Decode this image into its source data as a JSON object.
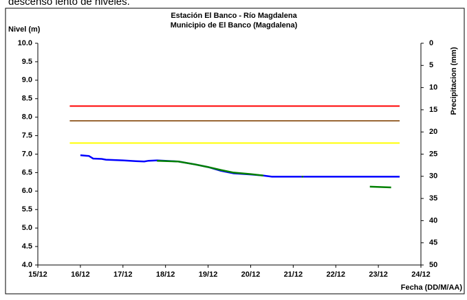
{
  "caption": "descenso lento de niveles.",
  "chart_data": {
    "type": "line",
    "title": "Estación El Banco - Río Magdalena",
    "subtitle": "Municipio de El Banco (Magdalena)",
    "ylabel": "Nivel (m)",
    "y2label": "Precipitacion (mm)",
    "xlabel": "Fecha (DD/M/AA)",
    "xlim": [
      15,
      24
    ],
    "xticks": [
      {
        "value": 15,
        "label": "15/12"
      },
      {
        "value": 16,
        "label": "16/12"
      },
      {
        "value": 17,
        "label": "17/12"
      },
      {
        "value": 18,
        "label": "18/12"
      },
      {
        "value": 19,
        "label": "19/12"
      },
      {
        "value": 20,
        "label": "20/12"
      },
      {
        "value": 21,
        "label": "21/12"
      },
      {
        "value": 22,
        "label": "22/12"
      },
      {
        "value": 23,
        "label": "23/12"
      },
      {
        "value": 24,
        "label": "24/12"
      }
    ],
    "ylim": [
      4,
      10
    ],
    "yticks": [
      {
        "value": 4,
        "label": "4.0"
      },
      {
        "value": 4.5,
        "label": "4.5"
      },
      {
        "value": 5,
        "label": "5.0"
      },
      {
        "value": 5.5,
        "label": "5.5"
      },
      {
        "value": 6,
        "label": "6.0"
      },
      {
        "value": 6.5,
        "label": "6.5"
      },
      {
        "value": 7,
        "label": "7.0"
      },
      {
        "value": 7.5,
        "label": "7.5"
      },
      {
        "value": 8,
        "label": "8.0"
      },
      {
        "value": 8.5,
        "label": "8.5"
      },
      {
        "value": 9,
        "label": "9.0"
      },
      {
        "value": 9.5,
        "label": "9.5"
      },
      {
        "value": 10,
        "label": "10.0"
      }
    ],
    "y2lim": [
      50,
      0
    ],
    "y2ticks": [
      0,
      5,
      10,
      15,
      20,
      25,
      30,
      35,
      40,
      45,
      50
    ],
    "series": [
      {
        "color": "#ff0000",
        "x": [
          15.75,
          23.5
        ],
        "values": [
          8.3,
          8.3
        ]
      },
      {
        "color": "#996633",
        "x": [
          15.75,
          23.5
        ],
        "values": [
          7.9,
          7.9
        ]
      },
      {
        "color": "#ffff00",
        "x": [
          15.75,
          23.5
        ],
        "values": [
          7.3,
          7.3
        ]
      },
      {
        "color": "#0000ff",
        "x": [
          16.0,
          16.2,
          16.3,
          16.5,
          16.6,
          17.0,
          17.3,
          17.5,
          17.6,
          17.8,
          18.3,
          18.7,
          19.0,
          19.3,
          19.6,
          20.0,
          20.3,
          20.5,
          23.5
        ],
        "values": [
          6.97,
          6.95,
          6.88,
          6.87,
          6.85,
          6.83,
          6.81,
          6.8,
          6.82,
          6.83,
          6.8,
          6.72,
          6.65,
          6.55,
          6.48,
          6.45,
          6.42,
          6.39,
          6.39
        ]
      },
      {
        "color": "#008000",
        "x": [
          17.8,
          18.3,
          18.7,
          19.0,
          19.3,
          19.6,
          20.0,
          20.3,
          20.6,
          21.2,
          21.9,
          22.8,
          23.3
        ],
        "values": [
          6.82,
          6.8,
          6.72,
          6.65,
          6.57,
          6.5,
          6.46,
          6.42,
          null,
          6.39,
          null,
          6.12,
          6.1
        ]
      }
    ]
  }
}
